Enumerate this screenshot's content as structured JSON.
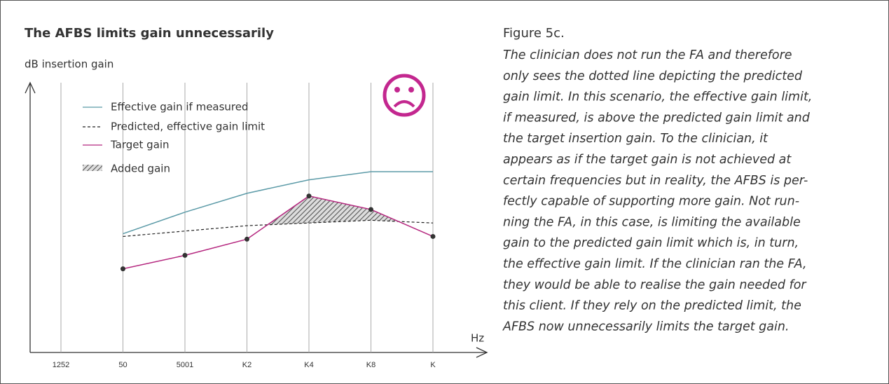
{
  "chart_data": {
    "type": "line",
    "title": "The AFBS limits gain unnecessarily",
    "y_label": "dB insertion gain",
    "x_label": "Hz",
    "categories": [
      "1252",
      "50",
      "5001",
      "K2",
      "K4",
      "K8",
      "K"
    ],
    "ylim": [
      0,
      100
    ],
    "series": [
      {
        "name": "Effective gain if measured",
        "color": "#5b9aa7",
        "dashed": false,
        "markers": false,
        "values": [
          null,
          44,
          52,
          59,
          64,
          67,
          67
        ]
      },
      {
        "name": "Predicted, effective gain limit",
        "color": "#222222",
        "dashed": true,
        "markers": false,
        "values": [
          null,
          43,
          45,
          47,
          48,
          49,
          48
        ]
      },
      {
        "name": "Target gain",
        "color": "#b5277f",
        "dashed": false,
        "markers": true,
        "values": [
          null,
          31,
          36,
          42,
          58,
          53,
          43
        ]
      }
    ],
    "area_name": "Added gain",
    "grid": true
  },
  "caption": {
    "heading": "Figure 5c.",
    "lines": [
      "The clinician does not run the FA and therefore",
      "only sees the dotted line depicting the predicted",
      "gain limit. In this scenario, the effective gain limit,",
      "if measured, is above the predicted gain limit and",
      "the target insertion gain. To the clinician, it",
      "appears as if the target gain is not achieved at",
      "certain frequencies but in reality, the AFBS is per-",
      "fectly capable of supporting more gain. Not run-",
      "ning the FA, in this case, is limiting the available",
      "gain to the predicted gain limit which is, in turn,",
      "the effective gain limit. If the clinician ran the FA,",
      "they would be able to realise the gain needed for",
      "this client. If they rely on the predicted limit, the",
      "AFBS now unnecessarily limits the target gain."
    ]
  }
}
